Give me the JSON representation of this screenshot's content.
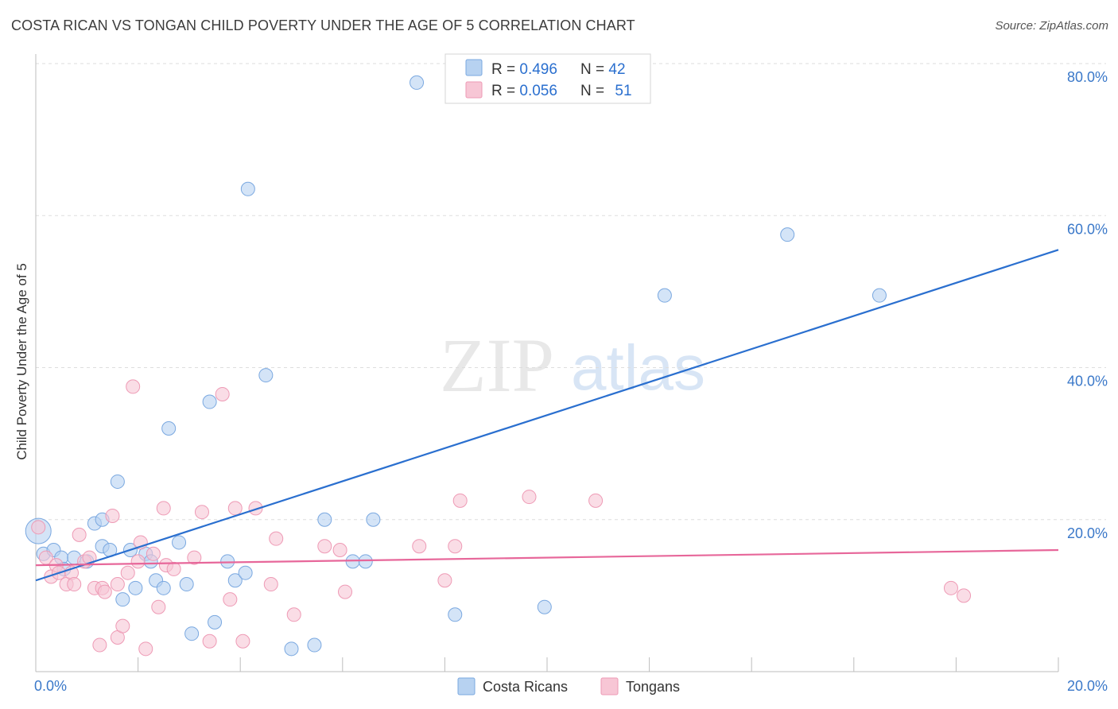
{
  "header": {
    "title": "COSTA RICAN VS TONGAN CHILD POVERTY UNDER THE AGE OF 5 CORRELATION CHART",
    "source": "Source: ZipAtlas.com"
  },
  "watermark": {
    "zip": "ZIP",
    "atlas": "atlas"
  },
  "colors": {
    "blue_fill": "#b7d2f1",
    "blue_stroke": "#7aa8e0",
    "blue_line": "#2a6fcf",
    "pink_fill": "#f7c6d5",
    "pink_stroke": "#ee9ab5",
    "pink_line": "#e7679a",
    "tick_text": "#3a78c9",
    "grid": "#dddddd"
  },
  "legend": {
    "rows": [
      {
        "r_label": "R = ",
        "r_value": "0.496",
        "n_label": "N = ",
        "n_value": "42"
      },
      {
        "r_label": "R = ",
        "r_value": "0.056",
        "n_label": "N = ",
        "n_value": "51"
      }
    ]
  },
  "chart_data": {
    "type": "scatter",
    "title": "COSTA RICAN VS TONGAN CHILD POVERTY UNDER THE AGE OF 5 CORRELATION CHART",
    "xlabel": "",
    "ylabel": "Child Poverty Under the Age of 5",
    "xlim": [
      0,
      20
    ],
    "ylim": [
      0,
      80
    ],
    "x_tick_labels": [
      "0.0%",
      "20.0%"
    ],
    "y_ticks": [
      20,
      40,
      60,
      80
    ],
    "y_tick_labels": [
      "20.0%",
      "40.0%",
      "60.0%",
      "80.0%"
    ],
    "grid": true,
    "series": [
      {
        "name": "Costa Ricans",
        "trend": {
          "x": [
            0,
            20
          ],
          "y": [
            12.0,
            55.5
          ]
        },
        "points": [
          [
            0.05,
            18.5
          ],
          [
            0.15,
            15.5
          ],
          [
            0.35,
            16.0
          ],
          [
            0.5,
            15.0
          ],
          [
            0.55,
            13.5
          ],
          [
            0.75,
            15.0
          ],
          [
            1.0,
            14.5
          ],
          [
            1.15,
            19.5
          ],
          [
            1.3,
            20.0
          ],
          [
            1.3,
            16.5
          ],
          [
            1.45,
            16.0
          ],
          [
            1.6,
            25.0
          ],
          [
            1.7,
            9.5
          ],
          [
            1.85,
            16.0
          ],
          [
            1.95,
            11.0
          ],
          [
            2.15,
            15.5
          ],
          [
            2.25,
            14.5
          ],
          [
            2.35,
            12.0
          ],
          [
            2.5,
            11.0
          ],
          [
            2.6,
            32.0
          ],
          [
            2.8,
            17.0
          ],
          [
            2.95,
            11.5
          ],
          [
            3.05,
            5.0
          ],
          [
            3.4,
            35.5
          ],
          [
            3.5,
            6.5
          ],
          [
            3.75,
            14.5
          ],
          [
            3.9,
            12.0
          ],
          [
            4.1,
            13.0
          ],
          [
            4.15,
            63.5
          ],
          [
            4.5,
            39.0
          ],
          [
            5.0,
            3.0
          ],
          [
            5.45,
            3.5
          ],
          [
            5.65,
            20.0
          ],
          [
            6.2,
            14.5
          ],
          [
            6.45,
            14.5
          ],
          [
            6.6,
            20.0
          ],
          [
            7.45,
            77.5
          ],
          [
            8.2,
            7.5
          ],
          [
            9.95,
            8.5
          ],
          [
            12.3,
            49.5
          ],
          [
            14.7,
            57.5
          ],
          [
            16.5,
            49.5
          ]
        ]
      },
      {
        "name": "Tongans",
        "trend": {
          "x": [
            0,
            20
          ],
          "y": [
            14.0,
            16.0
          ]
        },
        "points": [
          [
            0.05,
            19.0
          ],
          [
            0.2,
            15.0
          ],
          [
            0.3,
            12.5
          ],
          [
            0.4,
            14.0
          ],
          [
            0.45,
            13.0
          ],
          [
            0.6,
            11.5
          ],
          [
            0.7,
            13.0
          ],
          [
            0.75,
            11.5
          ],
          [
            0.85,
            18.0
          ],
          [
            0.95,
            14.5
          ],
          [
            1.05,
            15.0
          ],
          [
            1.15,
            11.0
          ],
          [
            1.25,
            3.5
          ],
          [
            1.3,
            11.0
          ],
          [
            1.35,
            10.5
          ],
          [
            1.5,
            20.5
          ],
          [
            1.6,
            4.5
          ],
          [
            1.6,
            11.5
          ],
          [
            1.7,
            6.0
          ],
          [
            1.8,
            13.0
          ],
          [
            1.9,
            37.5
          ],
          [
            2.0,
            14.5
          ],
          [
            2.05,
            17.0
          ],
          [
            2.15,
            3.0
          ],
          [
            2.3,
            15.5
          ],
          [
            2.4,
            8.5
          ],
          [
            2.5,
            21.5
          ],
          [
            2.55,
            14.0
          ],
          [
            2.7,
            13.5
          ],
          [
            3.1,
            15.0
          ],
          [
            3.25,
            21.0
          ],
          [
            3.4,
            4.0
          ],
          [
            3.65,
            36.5
          ],
          [
            3.8,
            9.5
          ],
          [
            3.9,
            21.5
          ],
          [
            4.05,
            4.0
          ],
          [
            4.3,
            21.5
          ],
          [
            4.6,
            11.5
          ],
          [
            4.7,
            17.5
          ],
          [
            5.05,
            7.5
          ],
          [
            5.65,
            16.5
          ],
          [
            5.95,
            16.0
          ],
          [
            6.05,
            10.5
          ],
          [
            7.5,
            16.5
          ],
          [
            8.0,
            12.0
          ],
          [
            8.2,
            16.5
          ],
          [
            8.3,
            22.5
          ],
          [
            9.65,
            23.0
          ],
          [
            10.95,
            22.5
          ],
          [
            17.9,
            11.0
          ],
          [
            18.15,
            10.0
          ]
        ]
      }
    ]
  }
}
